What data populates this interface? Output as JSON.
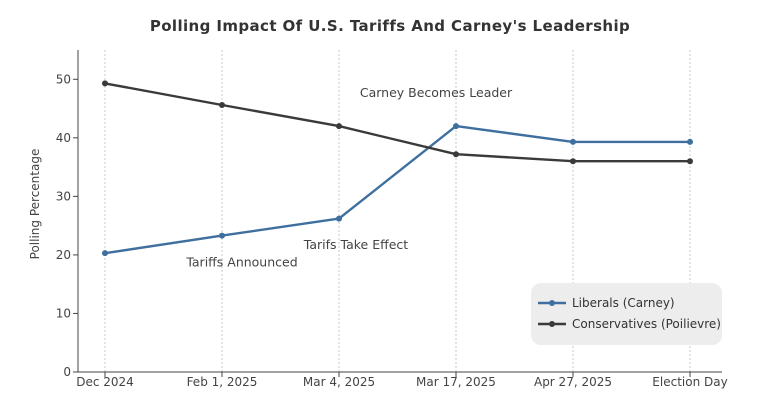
{
  "chart_data": {
    "type": "line",
    "title": "Polling Impact Of U.S. Tariffs And Carney's Leadership",
    "xlabel": "",
    "ylabel": "Polling Percentage",
    "categories": [
      "Dec 2024",
      "Feb 1, 2025",
      "Mar 4, 2025",
      "Mar 17, 2025",
      "Apr 27, 2025",
      "Election Day"
    ],
    "ylim": [
      0,
      55
    ],
    "yticks": [
      0,
      10,
      20,
      30,
      40,
      50
    ],
    "grid": "vertical",
    "legend_position": "bottom-right",
    "series": [
      {
        "name": "Liberals (Carney)",
        "color": "#3e6f9e",
        "values": [
          20.3,
          23.3,
          26.2,
          42.0,
          39.3,
          39.3
        ]
      },
      {
        "name": "Conservatives (Poilievre)",
        "color": "#3a3a3a",
        "values": [
          49.3,
          45.6,
          42.0,
          37.2,
          36.0,
          36.0
        ]
      }
    ],
    "annotations": [
      {
        "text": "Tariffs Announced",
        "category": "Feb 1, 2025",
        "value": 18
      },
      {
        "text": "Tarifs Take Effect",
        "category": "Mar 4, 2025",
        "value": 21
      },
      {
        "text": "Carney Becomes Leader",
        "category": "Mar 17, 2025",
        "value": 47
      }
    ]
  }
}
